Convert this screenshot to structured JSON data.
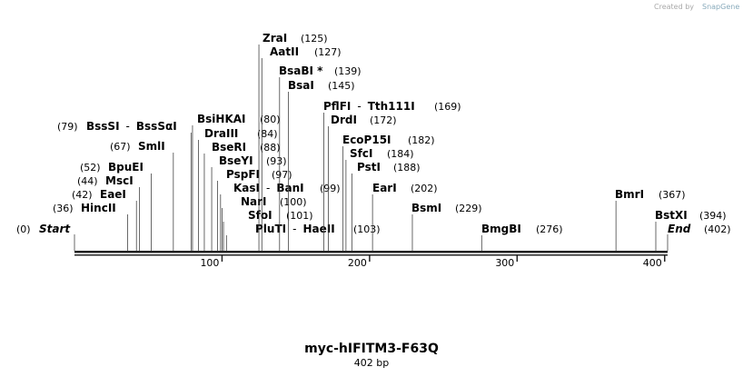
{
  "credit": "Created by",
  "brand": "SnapGene",
  "title": "myc-hIFITM3-F63Q",
  "subtitle": "402 bp",
  "name_separator": "-",
  "ruler": {
    "length": 402,
    "ticks": [
      100,
      200,
      300,
      400
    ]
  },
  "ends": [
    {
      "label": "Start",
      "pos": 0,
      "pos_label": "(0)"
    },
    {
      "label": "End",
      "pos": 402,
      "pos_label": "(402)"
    }
  ],
  "sites": [
    {
      "names": [
        "HincII"
      ],
      "pos": 36,
      "pos_label": "(36)"
    },
    {
      "names": [
        "EaeI"
      ],
      "pos": 42,
      "pos_label": "(42)"
    },
    {
      "names": [
        "MscI"
      ],
      "pos": 44,
      "pos_label": "(44)"
    },
    {
      "names": [
        "BpuEI"
      ],
      "pos": 52,
      "pos_label": "(52)"
    },
    {
      "names": [
        "SmlI"
      ],
      "pos": 67,
      "pos_label": "(67)"
    },
    {
      "names": [
        "BssSI",
        "BssSαI"
      ],
      "pos": 79,
      "pos_label": "(79)"
    },
    {
      "names": [
        "BsiHKAI"
      ],
      "pos": 80,
      "pos_label": "(80)"
    },
    {
      "names": [
        "DraIII"
      ],
      "pos": 84,
      "pos_label": "(84)"
    },
    {
      "names": [
        "BseRI"
      ],
      "pos": 88,
      "pos_label": "(88)"
    },
    {
      "names": [
        "BseYI"
      ],
      "pos": 93,
      "pos_label": "(93)"
    },
    {
      "names": [
        "PspFI"
      ],
      "pos": 97,
      "pos_label": "(97)"
    },
    {
      "names": [
        "KasI",
        "BanI"
      ],
      "pos": 99,
      "pos_label": "(99)"
    },
    {
      "names": [
        "NarI"
      ],
      "pos": 100,
      "pos_label": "(100)"
    },
    {
      "names": [
        "SfoI"
      ],
      "pos": 101,
      "pos_label": "(101)"
    },
    {
      "names": [
        "PluTI",
        "HaeII"
      ],
      "pos": 103,
      "pos_label": "(103)"
    },
    {
      "names": [
        "ZraI"
      ],
      "pos": 125,
      "pos_label": "(125)"
    },
    {
      "names": [
        "AatII"
      ],
      "pos": 127,
      "pos_label": "(127)"
    },
    {
      "names": [
        "BsaBI *"
      ],
      "pos": 139,
      "pos_label": "(139)"
    },
    {
      "names": [
        "BsaI"
      ],
      "pos": 145,
      "pos_label": "(145)"
    },
    {
      "names": [
        "PflFI",
        "Tth111I"
      ],
      "pos": 169,
      "pos_label": "(169)"
    },
    {
      "names": [
        "DrdI"
      ],
      "pos": 172,
      "pos_label": "(172)"
    },
    {
      "names": [
        "EcoP15I"
      ],
      "pos": 182,
      "pos_label": "(182)"
    },
    {
      "names": [
        "SfcI"
      ],
      "pos": 184,
      "pos_label": "(184)"
    },
    {
      "names": [
        "PstI"
      ],
      "pos": 188,
      "pos_label": "(188)"
    },
    {
      "names": [
        "EarI"
      ],
      "pos": 202,
      "pos_label": "(202)"
    },
    {
      "names": [
        "BsmI"
      ],
      "pos": 229,
      "pos_label": "(229)"
    },
    {
      "names": [
        "BmgBI"
      ],
      "pos": 276,
      "pos_label": "(276)"
    },
    {
      "names": [
        "BmrI"
      ],
      "pos": 367,
      "pos_label": "(367)"
    },
    {
      "names": [
        "BstXI"
      ],
      "pos": 394,
      "pos_label": "(394)"
    }
  ]
}
